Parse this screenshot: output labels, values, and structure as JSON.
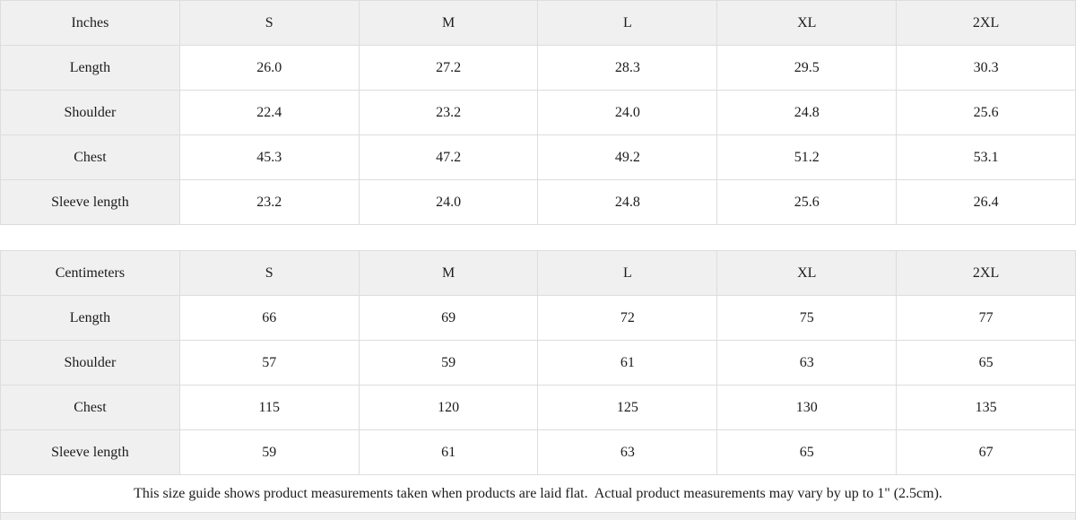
{
  "colors": {
    "header_bg": "#f0f0f0",
    "border": "#dddddd",
    "text": "#1c1c1c"
  },
  "table_inches": {
    "unit_label": "Inches",
    "sizes": [
      "S",
      "M",
      "L",
      "XL",
      "2XL"
    ],
    "rows": [
      {
        "label": "Length",
        "values": [
          "26.0",
          "27.2",
          "28.3",
          "29.5",
          "30.3"
        ]
      },
      {
        "label": "Shoulder",
        "values": [
          "22.4",
          "23.2",
          "24.0",
          "24.8",
          "25.6"
        ]
      },
      {
        "label": "Chest",
        "values": [
          "45.3",
          "47.2",
          "49.2",
          "51.2",
          "53.1"
        ]
      },
      {
        "label": "Sleeve length",
        "values": [
          "23.2",
          "24.0",
          "24.8",
          "25.6",
          "26.4"
        ]
      }
    ]
  },
  "table_centimeters": {
    "unit_label": "Centimeters",
    "sizes": [
      "S",
      "M",
      "L",
      "XL",
      "2XL"
    ],
    "rows": [
      {
        "label": "Length",
        "values": [
          "66",
          "69",
          "72",
          "75",
          "77"
        ]
      },
      {
        "label": "Shoulder",
        "values": [
          "57",
          "59",
          "61",
          "63",
          "65"
        ]
      },
      {
        "label": "Chest",
        "values": [
          "115",
          "120",
          "125",
          "130",
          "135"
        ]
      },
      {
        "label": "Sleeve length",
        "values": [
          "59",
          "61",
          "63",
          "65",
          "67"
        ]
      }
    ]
  },
  "footer": {
    "note": "This size guide shows product measurements taken when products are laid flat.  Actual product measurements may vary by up to 1\" (2.5cm)."
  }
}
